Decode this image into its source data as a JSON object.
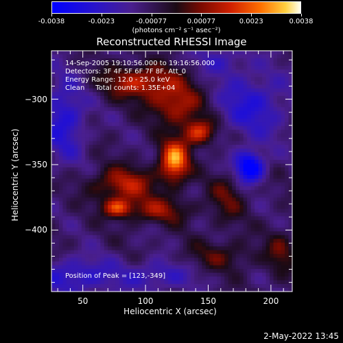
{
  "colorbar": {
    "tick_labels": [
      "-0.0038",
      "-0.0023",
      "-0.00077",
      "0.00077",
      "0.0023",
      "0.0038"
    ],
    "units": "(photons cm⁻² s⁻¹ asec⁻²)",
    "range": [
      -0.0038,
      0.0038
    ],
    "colors": [
      "#0000ff",
      "#4a1f8e",
      "#1a0a14",
      "#d02000",
      "#ff7000",
      "#fffff0"
    ]
  },
  "chart_data": {
    "type": "heatmap",
    "title": "Reconstructed RHESSI Image",
    "xlabel": "Heliocentric X (arcsec)",
    "ylabel": "Heliocentric Y (arcsec)",
    "xlim": [
      25,
      217
    ],
    "ylim": [
      -447,
      -263
    ],
    "x_ticks": [
      50,
      100,
      150,
      200
    ],
    "y_ticks": [
      -300,
      -350,
      -400
    ],
    "peak": {
      "x": 123,
      "y": -349
    },
    "sources": [
      {
        "x": 123,
        "y": -347,
        "value": 0.0038,
        "sx": 8,
        "sy": 11
      },
      {
        "x": 143,
        "y": -325,
        "value": 0.0028,
        "sx": 9,
        "sy": 7
      },
      {
        "x": 83,
        "y": -365,
        "value": 0.0022,
        "sx": 18,
        "sy": 9
      },
      {
        "x": 98,
        "y": -287,
        "value": 0.0024,
        "sx": 22,
        "sy": 9
      },
      {
        "x": 125,
        "y": -305,
        "value": 0.0022,
        "sx": 14,
        "sy": 10
      },
      {
        "x": 78,
        "y": -383,
        "value": 0.0026,
        "sx": 8,
        "sy": 5
      },
      {
        "x": 110,
        "y": -385,
        "value": 0.0017,
        "sx": 18,
        "sy": 7
      },
      {
        "x": 165,
        "y": -375,
        "value": 0.0012,
        "sx": 10,
        "sy": 14
      },
      {
        "x": 160,
        "y": -420,
        "value": 0.0011,
        "sx": 20,
        "sy": 8
      },
      {
        "x": 208,
        "y": -417,
        "value": 0.0012,
        "sx": 8,
        "sy": 12
      },
      {
        "x": 183,
        "y": -352,
        "value": -0.0035,
        "sx": 8,
        "sy": 8
      },
      {
        "x": 35,
        "y": -315,
        "value": -0.0018,
        "sx": 12,
        "sy": 22
      },
      {
        "x": 185,
        "y": -305,
        "value": -0.0016,
        "sx": 20,
        "sy": 18
      },
      {
        "x": 45,
        "y": -435,
        "value": -0.0016,
        "sx": 22,
        "sy": 10
      },
      {
        "x": 110,
        "y": -435,
        "value": -0.0013,
        "sx": 20,
        "sy": 8
      },
      {
        "x": 160,
        "y": -270,
        "value": -0.001,
        "sx": 15,
        "sy": 8
      }
    ]
  },
  "info": {
    "line1": "14-Sep-2005 19:10:56.000 to 19:16:56.000",
    "line2": "Detectors: 3F 4F 5F 6F 7F 8F, Att_0",
    "line3": "Energy Range: 12.0 - 25.0 keV",
    "line4": "Clean     Total counts: 1.35E+04",
    "peak_label": "Position of Peak = [123,-349]"
  },
  "timestamp": "2-May-2022 13:45"
}
